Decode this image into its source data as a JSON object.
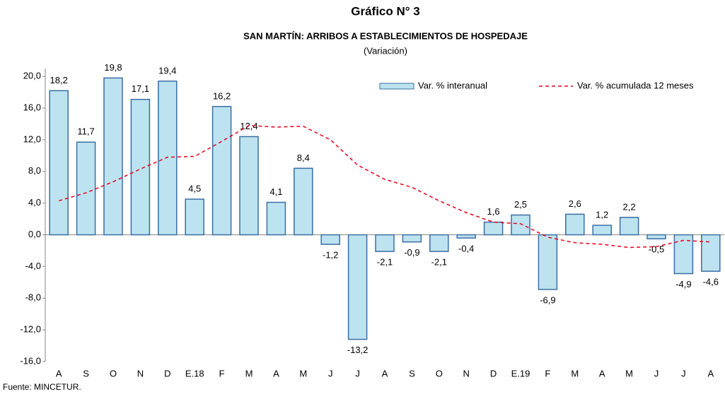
{
  "chart_data": {
    "type": "bar",
    "title": "Gráfico N° 3",
    "subtitle": "SAN MARTÍN: ARRIBOS A ESTABLECIMIENTOS DE HOSPEDAJE",
    "subtitle2": "(Variación)",
    "source": "Fuente: MINCETUR.",
    "categories": [
      "A",
      "S",
      "O",
      "N",
      "D",
      "E.18",
      "F",
      "M",
      "A",
      "M",
      "J",
      "J",
      "A",
      "S",
      "O",
      "N",
      "D",
      "E.19",
      "F",
      "M",
      "A",
      "M",
      "J",
      "J",
      "A"
    ],
    "series": [
      {
        "name": "Var. % interanual",
        "type": "bar",
        "color": "#bde3f0",
        "stroke": "#3a6ea5",
        "values": [
          18.2,
          11.7,
          19.8,
          17.1,
          19.4,
          4.5,
          16.2,
          12.4,
          4.1,
          8.4,
          -1.2,
          -13.2,
          -2.1,
          -0.9,
          -2.1,
          -0.4,
          1.6,
          2.5,
          -6.9,
          2.6,
          1.2,
          2.2,
          -0.5,
          -4.9,
          -4.6
        ],
        "value_labels": [
          "18,2",
          "11,7",
          "19,8",
          "17,1",
          "19,4",
          "4,5",
          "16,2",
          "12,4",
          "4,1",
          "8,4",
          "-1,2",
          "-13,2",
          "-2,1",
          "-0,9",
          "-2,1",
          "-0,4",
          "1,6",
          "2,5",
          "-6,9",
          "2,6",
          "1,2",
          "2,2",
          "-0,5",
          "-4,9",
          "-4,6"
        ]
      },
      {
        "name": "Var. % acumulada 12 meses",
        "type": "line",
        "color": "#e8001c",
        "values": [
          4.3,
          5.3,
          6.7,
          8.3,
          9.8,
          9.9,
          11.8,
          13.8,
          13.6,
          13.7,
          12.0,
          8.8,
          7.0,
          6.0,
          4.3,
          2.8,
          1.6,
          1.4,
          -0.3,
          -1.0,
          -1.2,
          -1.6,
          -1.5,
          -0.7,
          -0.9
        ]
      }
    ],
    "ylim": [
      -16,
      21
    ],
    "yticks": [
      {
        "value": -16,
        "label": "-16,0"
      },
      {
        "value": -12,
        "label": "-12,0"
      },
      {
        "value": -8,
        "label": "-8,0"
      },
      {
        "value": -4,
        "label": "-4,0"
      },
      {
        "value": 0,
        "label": "0,0"
      },
      {
        "value": 4,
        "label": "4,0"
      },
      {
        "value": 8,
        "label": "8,0"
      },
      {
        "value": 12,
        "label": "12,0"
      },
      {
        "value": 16,
        "label": "16,0"
      },
      {
        "value": 20,
        "label": "20,0"
      }
    ],
    "legend": "top-right"
  }
}
